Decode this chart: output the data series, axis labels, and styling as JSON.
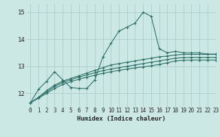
{
  "background_color": "#cce8e4",
  "grid_color": "#aaccca",
  "line_color": "#2a6e65",
  "xlabel": "Humidex (Indice chaleur)",
  "xlim": [
    -0.5,
    23
  ],
  "ylim": [
    11.5,
    15.3
  ],
  "yticks": [
    12,
    13,
    14,
    15
  ],
  "xtick_labels": [
    "0",
    "1",
    "2",
    "3",
    "4",
    "5",
    "6",
    "7",
    "8",
    "9",
    "10",
    "11",
    "12",
    "13",
    "14",
    "15",
    "16",
    "17",
    "18",
    "19",
    "20",
    "21",
    "22",
    "23"
  ],
  "lines": [
    [
      11.65,
      12.15,
      12.45,
      12.8,
      12.5,
      12.22,
      12.18,
      12.18,
      12.5,
      13.35,
      13.85,
      14.3,
      14.45,
      14.6,
      15.0,
      14.85,
      13.65,
      13.5,
      13.55,
      13.5,
      13.5,
      13.5,
      13.45,
      13.45
    ],
    [
      11.65,
      11.85,
      12.1,
      12.3,
      12.45,
      12.55,
      12.65,
      12.75,
      12.85,
      12.95,
      13.05,
      13.1,
      13.15,
      13.2,
      13.25,
      13.3,
      13.35,
      13.38,
      13.42,
      13.44,
      13.44,
      13.44,
      13.44,
      13.44
    ],
    [
      11.65,
      11.85,
      12.05,
      12.25,
      12.4,
      12.5,
      12.6,
      12.68,
      12.76,
      12.84,
      12.9,
      12.95,
      13.0,
      13.05,
      13.1,
      13.15,
      13.2,
      13.25,
      13.3,
      13.32,
      13.33,
      13.33,
      13.33,
      13.33
    ],
    [
      11.65,
      11.82,
      12.0,
      12.18,
      12.33,
      12.43,
      12.52,
      12.6,
      12.67,
      12.74,
      12.8,
      12.85,
      12.9,
      12.94,
      12.98,
      13.02,
      13.07,
      13.13,
      13.2,
      13.22,
      13.23,
      13.23,
      13.23,
      13.23
    ]
  ]
}
